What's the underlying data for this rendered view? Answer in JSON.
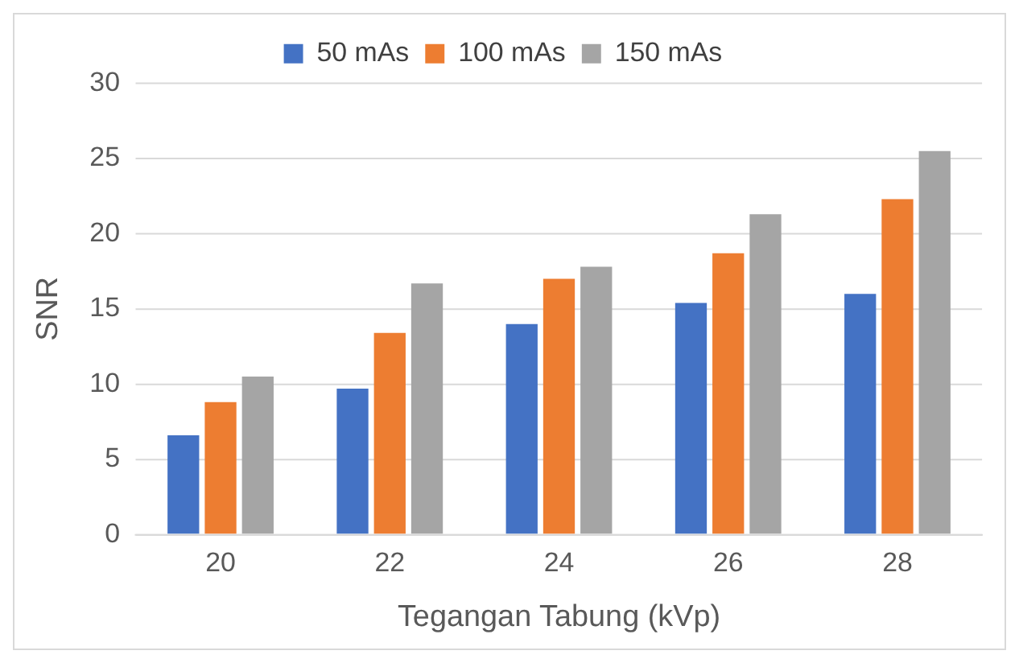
{
  "chart_data": {
    "type": "bar",
    "xlabel": "Tegangan Tabung (kVp)",
    "ylabel": "SNR",
    "categories": [
      "20",
      "22",
      "24",
      "26",
      "28"
    ],
    "series": [
      {
        "name": "50 mAs",
        "color": "#4472c4",
        "values": [
          6.6,
          9.7,
          14.0,
          15.4,
          16.0
        ]
      },
      {
        "name": "100 mAs",
        "color": "#ed7d31",
        "values": [
          8.8,
          13.4,
          17.0,
          18.7,
          22.3
        ]
      },
      {
        "name": "150 mAs",
        "color": "#a5a5a5",
        "values": [
          10.5,
          16.7,
          17.8,
          21.3,
          25.5
        ]
      }
    ],
    "ylim": [
      0,
      30
    ],
    "yticks": [
      0,
      5,
      10,
      15,
      20,
      25,
      30
    ],
    "grid": "y",
    "legend": "top"
  }
}
